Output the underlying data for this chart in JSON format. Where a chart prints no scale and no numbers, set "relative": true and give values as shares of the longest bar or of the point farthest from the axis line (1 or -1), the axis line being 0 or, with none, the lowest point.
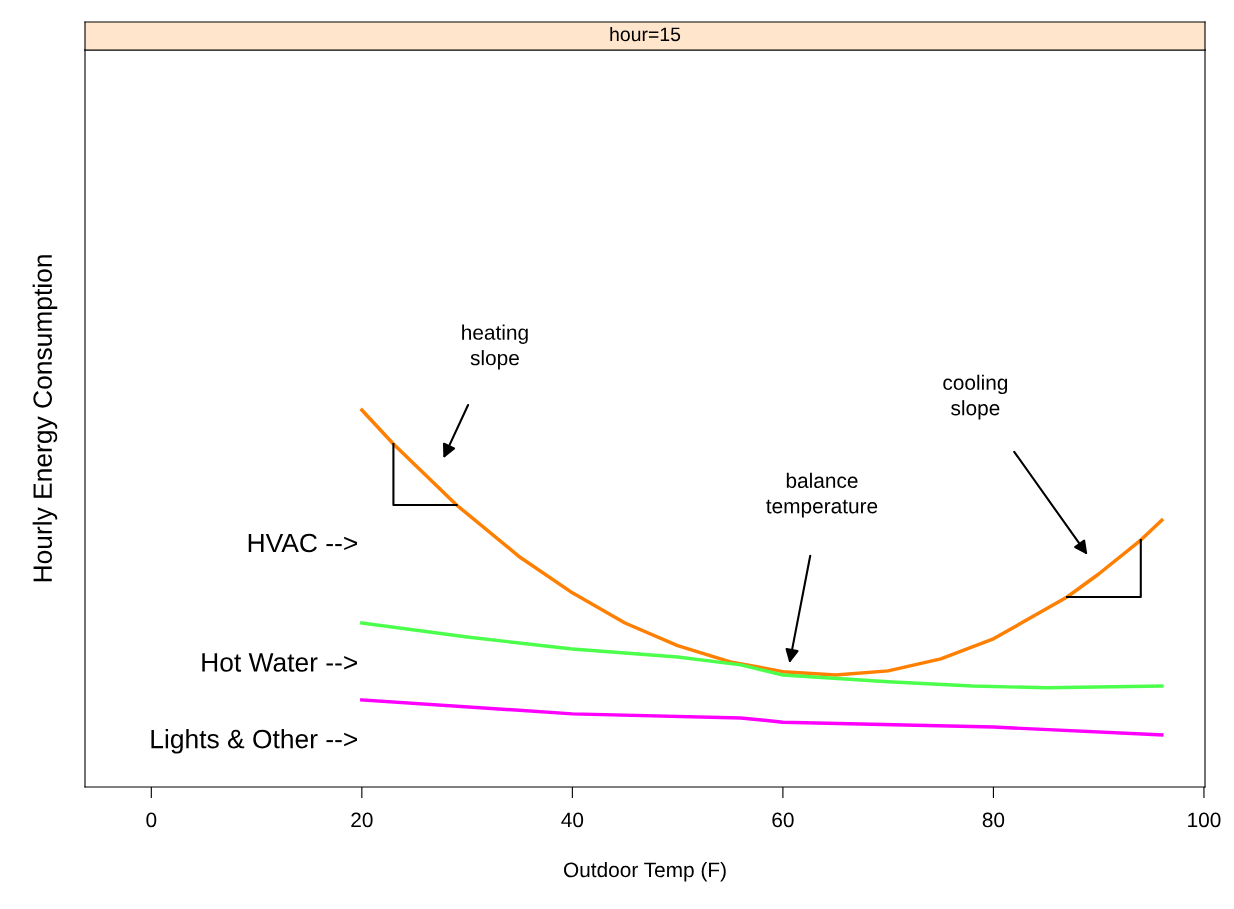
{
  "chart_data": {
    "type": "line",
    "title": "hour=15",
    "xlabel": "Outdoor Temp (F)",
    "ylabel": "Hourly Energy Consumption",
    "relative": true,
    "xlim": [
      -6.3,
      100.1
    ],
    "xticks": [
      0,
      20,
      40,
      60,
      80,
      100
    ],
    "grid": false,
    "legend": false,
    "series": [
      {
        "color": "#ff7f00",
        "x": [
          20,
          23,
          29,
          35,
          40,
          45,
          50,
          55,
          60,
          65,
          70,
          75,
          80,
          87,
          90,
          94,
          96
        ],
        "values": [
          1.0,
          0.91,
          0.748,
          0.61,
          0.515,
          0.435,
          0.375,
          0.332,
          0.306,
          0.297,
          0.308,
          0.34,
          0.393,
          0.504,
          0.565,
          0.655,
          0.708
        ]
      },
      {
        "color": "#4cff4c",
        "x": [
          20,
          30,
          40,
          50,
          56,
          60,
          70,
          78,
          85,
          96
        ],
        "values": [
          0.435,
          0.398,
          0.366,
          0.345,
          0.324,
          0.297,
          0.279,
          0.268,
          0.263,
          0.268
        ]
      },
      {
        "color": "#ff00ff",
        "x": [
          20,
          40,
          56,
          60,
          80,
          96
        ],
        "values": [
          0.231,
          0.194,
          0.183,
          0.172,
          0.159,
          0.138
        ]
      }
    ],
    "annotations": [
      "heating\nslope",
      "balance\ntemperature",
      "cooling\nslope",
      "HVAC -->",
      "Hot Water -->",
      "Lights & Other -->"
    ]
  }
}
